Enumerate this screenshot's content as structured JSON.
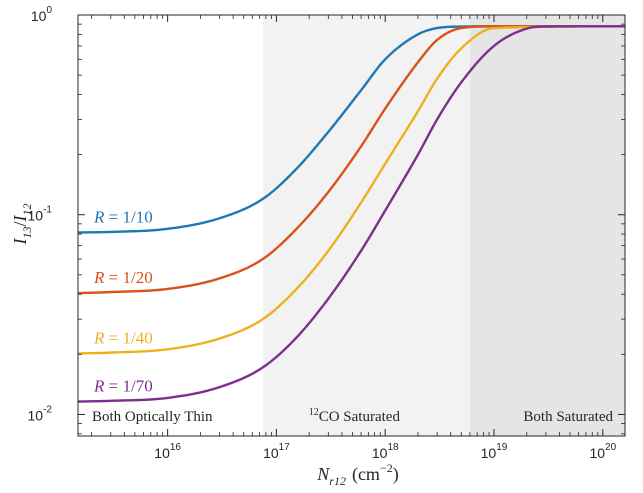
{
  "chart_data": {
    "type": "line",
    "x_scale": "log",
    "y_scale": "log",
    "xlim": [
      1500000000000000.0,
      1.6e+20
    ],
    "ylim": [
      0.0078,
      1.0
    ],
    "xlabel": {
      "main": "N",
      "sub": "r12",
      "unit_open": "(cm",
      "unit_exp": "−2",
      "unit_close": ")"
    },
    "ylabel": {
      "a": "I",
      "a_sub": "13",
      "slash": "/",
      "b": "I",
      "b_sub": "12"
    },
    "x_ticks": [
      {
        "value": 1e+16,
        "base": "10",
        "exp": "16"
      },
      {
        "value": 1e+17,
        "base": "10",
        "exp": "17"
      },
      {
        "value": 1e+18,
        "base": "10",
        "exp": "18"
      },
      {
        "value": 1e+19,
        "base": "10",
        "exp": "19"
      },
      {
        "value": 1e+20,
        "base": "10",
        "exp": "20"
      }
    ],
    "y_ticks": [
      {
        "value": 0.01,
        "base": "10",
        "exp": "-2"
      },
      {
        "value": 0.1,
        "base": "10",
        "exp": "-1"
      },
      {
        "value": 1.0,
        "base": "10",
        "exp": "0"
      }
    ],
    "regions": [
      {
        "x_from": 1500000000000000.0,
        "x_to": 7.5e+16,
        "color": "#ffffff",
        "label": "Both Optically Thin",
        "label_pre": "",
        "label_sup": "",
        "label_align": "start"
      },
      {
        "x_from": 7.5e+16,
        "x_to": 6e+18,
        "color": "#f2f2f2",
        "label": "CO Saturated",
        "label_pre": "",
        "label_sup": "12",
        "label_align": "middle"
      },
      {
        "x_from": 6e+18,
        "x_to": 1.6e+20,
        "color": "#e5e5e5",
        "label": "Both Saturated",
        "label_pre": "",
        "label_sup": "",
        "label_align": "end"
      }
    ],
    "series": [
      {
        "name": "R = 1/10",
        "var": "R",
        "eq": " = 1/10",
        "color": "#1f77b4",
        "x": [
          1500000000000000.0,
          3000000000000000.0,
          1e+16,
          3e+16,
          7.5e+16,
          1.5e+17,
          3e+17,
          6e+17,
          1e+18,
          2e+18,
          3e+18,
          5e+18,
          1e+19,
          1.6e+20
        ],
        "y": [
          0.0815,
          0.082,
          0.085,
          0.096,
          0.12,
          0.168,
          0.26,
          0.42,
          0.6,
          0.8,
          0.86,
          0.875,
          0.878,
          0.878
        ]
      },
      {
        "name": "R = 1/20",
        "var": "R",
        "eq": " = 1/20",
        "color": "#d95319",
        "x": [
          1500000000000000.0,
          3000000000000000.0,
          1e+16,
          3e+16,
          7.5e+16,
          1.5e+17,
          3e+17,
          6e+17,
          1e+18,
          2e+18,
          3e+18,
          5e+18,
          1e+19,
          1.6e+20
        ],
        "y": [
          0.0405,
          0.041,
          0.0425,
          0.048,
          0.06,
          0.084,
          0.13,
          0.22,
          0.34,
          0.58,
          0.75,
          0.86,
          0.877,
          0.878
        ]
      },
      {
        "name": "R = 1/40",
        "var": "R",
        "eq": " = 1/40",
        "color": "#edb120",
        "x": [
          1500000000000000.0,
          3000000000000000.0,
          1e+16,
          3e+16,
          7.5e+16,
          1.5e+17,
          3e+17,
          6e+17,
          1e+18,
          2e+18,
          3e+18,
          5e+18,
          1e+19,
          1.6e+20
        ],
        "y": [
          0.0202,
          0.0204,
          0.0212,
          0.024,
          0.03,
          0.042,
          0.066,
          0.115,
          0.18,
          0.33,
          0.48,
          0.68,
          0.86,
          0.878
        ]
      },
      {
        "name": "R = 1/70",
        "var": "R",
        "eq": " = 1/70",
        "color": "#7e2f8e",
        "x": [
          1500000000000000.0,
          3000000000000000.0,
          1e+16,
          3e+16,
          7.5e+16,
          1.5e+17,
          3e+17,
          6e+17,
          1e+18,
          2e+18,
          3e+18,
          5e+18,
          1e+19,
          2e+19,
          3e+19,
          1.6e+20
        ],
        "y": [
          0.0116,
          0.0117,
          0.0121,
          0.0137,
          0.0172,
          0.024,
          0.038,
          0.066,
          0.105,
          0.2,
          0.3,
          0.46,
          0.7,
          0.855,
          0.875,
          0.878
        ]
      }
    ],
    "series_label_x": [
      1700000000000000.0,
      1700000000000000.0,
      1700000000000000.0,
      1700000000000000.0
    ],
    "series_label_y_offset": [
      0.0815,
      0.0405,
      0.0202,
      0.0116
    ],
    "grid": false,
    "legend": "inline-left"
  }
}
